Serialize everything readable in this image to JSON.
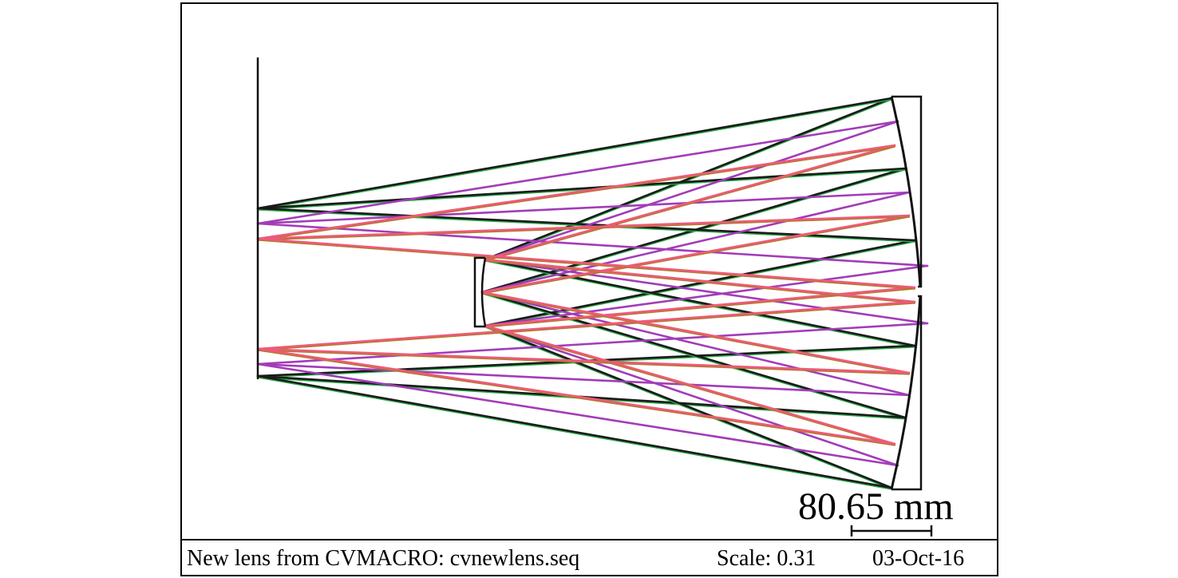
{
  "diagram": {
    "scale_bar_label": "80.65 mm",
    "footer": {
      "lens_title": "New lens from CVMACRO: cvnewlens.seq",
      "scale": "Scale: 0.31",
      "date": "03-Oct-16"
    },
    "colors": {
      "field_1": "#1a1a1a",
      "field_1_edge": "#2fae4e",
      "field_2": "#a23cb8",
      "field_3": "#ee5a78",
      "field_3_edge": "#b07a2a",
      "outline": "#111111"
    }
  }
}
